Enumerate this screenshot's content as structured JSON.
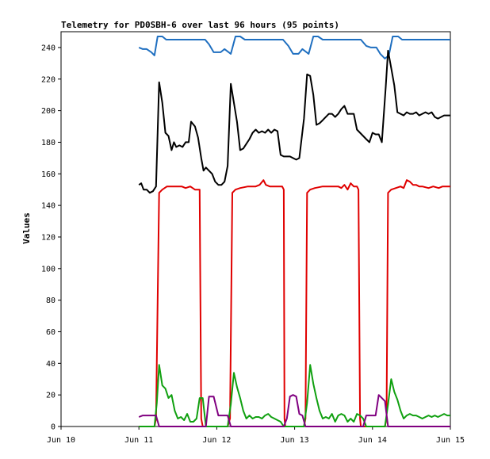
{
  "chart_data": {
    "type": "line",
    "title": "Telemetry for PD0SBH-6 over last 96 hours (95 points)",
    "xlabel": "",
    "ylabel": "Values",
    "xlim": [
      0,
      5
    ],
    "ylim": [
      0,
      250
    ],
    "x_ticks": [
      {
        "value": 0,
        "label": "Jun 10"
      },
      {
        "value": 1,
        "label": "Jun 11"
      },
      {
        "value": 2,
        "label": "Jun 12"
      },
      {
        "value": 3,
        "label": "Jun 13"
      },
      {
        "value": 4,
        "label": "Jun 14"
      },
      {
        "value": 5,
        "label": "Jun 15"
      }
    ],
    "y_ticks": [
      0,
      20,
      40,
      60,
      80,
      100,
      120,
      140,
      160,
      180,
      200,
      220,
      240
    ],
    "grid": false,
    "series": [
      {
        "color": "#1f6fc0",
        "points": [
          [
            1.0,
            240
          ],
          [
            1.05,
            239
          ],
          [
            1.1,
            239
          ],
          [
            1.16,
            237
          ],
          [
            1.2,
            235
          ],
          [
            1.24,
            247
          ],
          [
            1.3,
            247
          ],
          [
            1.35,
            245
          ],
          [
            1.5,
            245
          ],
          [
            1.7,
            245
          ],
          [
            1.85,
            245
          ],
          [
            1.9,
            242
          ],
          [
            1.96,
            237
          ],
          [
            2.05,
            237
          ],
          [
            2.1,
            239
          ],
          [
            2.18,
            236
          ],
          [
            2.24,
            247
          ],
          [
            2.3,
            247
          ],
          [
            2.36,
            245
          ],
          [
            2.6,
            245
          ],
          [
            2.85,
            245
          ],
          [
            2.92,
            241
          ],
          [
            2.98,
            236
          ],
          [
            3.05,
            236
          ],
          [
            3.1,
            239
          ],
          [
            3.18,
            236
          ],
          [
            3.24,
            247
          ],
          [
            3.3,
            247
          ],
          [
            3.36,
            245
          ],
          [
            3.6,
            245
          ],
          [
            3.85,
            245
          ],
          [
            3.92,
            241
          ],
          [
            3.98,
            240
          ],
          [
            4.05,
            240
          ],
          [
            4.1,
            236
          ],
          [
            4.16,
            233
          ],
          [
            4.21,
            235
          ],
          [
            4.26,
            247
          ],
          [
            4.33,
            247
          ],
          [
            4.38,
            245
          ],
          [
            4.6,
            245
          ],
          [
            5.0,
            245
          ]
        ]
      },
      {
        "color": "#000000",
        "points": [
          [
            1.0,
            153
          ],
          [
            1.03,
            154
          ],
          [
            1.06,
            150
          ],
          [
            1.1,
            150
          ],
          [
            1.14,
            148
          ],
          [
            1.18,
            149
          ],
          [
            1.22,
            152
          ],
          [
            1.26,
            218
          ],
          [
            1.3,
            205
          ],
          [
            1.34,
            186
          ],
          [
            1.38,
            184
          ],
          [
            1.42,
            175
          ],
          [
            1.45,
            180
          ],
          [
            1.48,
            177
          ],
          [
            1.52,
            178
          ],
          [
            1.56,
            177
          ],
          [
            1.6,
            180
          ],
          [
            1.64,
            180
          ],
          [
            1.67,
            193
          ],
          [
            1.72,
            190
          ],
          [
            1.76,
            183
          ],
          [
            1.8,
            170
          ],
          [
            1.83,
            162
          ],
          [
            1.86,
            164
          ],
          [
            1.9,
            162
          ],
          [
            1.94,
            160
          ],
          [
            1.98,
            155
          ],
          [
            2.02,
            153
          ],
          [
            2.06,
            153
          ],
          [
            2.1,
            155
          ],
          [
            2.14,
            165
          ],
          [
            2.18,
            217
          ],
          [
            2.22,
            205
          ],
          [
            2.26,
            193
          ],
          [
            2.3,
            175
          ],
          [
            2.34,
            176
          ],
          [
            2.38,
            179
          ],
          [
            2.42,
            182
          ],
          [
            2.46,
            186
          ],
          [
            2.5,
            188
          ],
          [
            2.54,
            186
          ],
          [
            2.58,
            187
          ],
          [
            2.62,
            186
          ],
          [
            2.66,
            188
          ],
          [
            2.7,
            186
          ],
          [
            2.74,
            188
          ],
          [
            2.78,
            187
          ],
          [
            2.82,
            172
          ],
          [
            2.86,
            171
          ],
          [
            2.9,
            171
          ],
          [
            2.94,
            171
          ],
          [
            2.98,
            170
          ],
          [
            3.02,
            169
          ],
          [
            3.06,
            170
          ],
          [
            3.12,
            195
          ],
          [
            3.16,
            223
          ],
          [
            3.2,
            222
          ],
          [
            3.24,
            210
          ],
          [
            3.28,
            191
          ],
          [
            3.32,
            192
          ],
          [
            3.36,
            194
          ],
          [
            3.4,
            196
          ],
          [
            3.44,
            198
          ],
          [
            3.48,
            198
          ],
          [
            3.52,
            196
          ],
          [
            3.56,
            198
          ],
          [
            3.6,
            201
          ],
          [
            3.64,
            203
          ],
          [
            3.68,
            198
          ],
          [
            3.72,
            198
          ],
          [
            3.76,
            198
          ],
          [
            3.8,
            188
          ],
          [
            3.84,
            186
          ],
          [
            3.88,
            184
          ],
          [
            3.92,
            182
          ],
          [
            3.96,
            180
          ],
          [
            4.0,
            186
          ],
          [
            4.04,
            185
          ],
          [
            4.08,
            185
          ],
          [
            4.12,
            180
          ],
          [
            4.17,
            215
          ],
          [
            4.2,
            238
          ],
          [
            4.24,
            227
          ],
          [
            4.28,
            216
          ],
          [
            4.32,
            199
          ],
          [
            4.36,
            198
          ],
          [
            4.4,
            197
          ],
          [
            4.44,
            199
          ],
          [
            4.48,
            198
          ],
          [
            4.52,
            198
          ],
          [
            4.56,
            199
          ],
          [
            4.6,
            197
          ],
          [
            4.64,
            198
          ],
          [
            4.68,
            199
          ],
          [
            4.72,
            198
          ],
          [
            4.76,
            199
          ],
          [
            4.8,
            196
          ],
          [
            4.84,
            195
          ],
          [
            4.88,
            196
          ],
          [
            4.92,
            197
          ],
          [
            5.0,
            197
          ]
        ]
      },
      {
        "color": "#e00000",
        "points": [
          [
            1.0,
            0
          ],
          [
            1.2,
            0
          ],
          [
            1.22,
            5
          ],
          [
            1.26,
            148
          ],
          [
            1.3,
            150
          ],
          [
            1.36,
            152
          ],
          [
            1.45,
            152
          ],
          [
            1.55,
            152
          ],
          [
            1.6,
            151
          ],
          [
            1.66,
            152
          ],
          [
            1.72,
            150
          ],
          [
            1.78,
            150
          ],
          [
            1.8,
            5
          ],
          [
            1.82,
            0
          ],
          [
            2.14,
            0
          ],
          [
            2.17,
            5
          ],
          [
            2.2,
            148
          ],
          [
            2.24,
            150
          ],
          [
            2.3,
            151
          ],
          [
            2.4,
            152
          ],
          [
            2.5,
            152
          ],
          [
            2.55,
            153
          ],
          [
            2.6,
            156
          ],
          [
            2.63,
            153
          ],
          [
            2.68,
            152
          ],
          [
            2.74,
            152
          ],
          [
            2.8,
            152
          ],
          [
            2.84,
            152
          ],
          [
            2.86,
            150
          ],
          [
            2.87,
            5
          ],
          [
            2.88,
            0
          ],
          [
            3.12,
            0
          ],
          [
            3.14,
            5
          ],
          [
            3.16,
            148
          ],
          [
            3.2,
            150
          ],
          [
            3.26,
            151
          ],
          [
            3.36,
            152
          ],
          [
            3.46,
            152
          ],
          [
            3.56,
            152
          ],
          [
            3.6,
            151
          ],
          [
            3.64,
            153
          ],
          [
            3.68,
            150
          ],
          [
            3.72,
            154
          ],
          [
            3.76,
            152
          ],
          [
            3.8,
            152
          ],
          [
            3.82,
            150
          ],
          [
            3.84,
            5
          ],
          [
            3.85,
            0
          ],
          [
            4.16,
            0
          ],
          [
            4.18,
            5
          ],
          [
            4.2,
            148
          ],
          [
            4.24,
            150
          ],
          [
            4.3,
            151
          ],
          [
            4.36,
            152
          ],
          [
            4.4,
            151
          ],
          [
            4.44,
            156
          ],
          [
            4.48,
            155
          ],
          [
            4.52,
            153
          ],
          [
            4.56,
            153
          ],
          [
            4.6,
            152
          ],
          [
            4.64,
            152
          ],
          [
            4.72,
            151
          ],
          [
            4.78,
            152
          ],
          [
            4.85,
            151
          ],
          [
            4.9,
            152
          ],
          [
            4.95,
            152
          ],
          [
            5.0,
            152
          ]
        ]
      },
      {
        "color": "#10a010",
        "points": [
          [
            1.0,
            0
          ],
          [
            1.2,
            0
          ],
          [
            1.23,
            15
          ],
          [
            1.26,
            39
          ],
          [
            1.3,
            26
          ],
          [
            1.34,
            24
          ],
          [
            1.38,
            18
          ],
          [
            1.42,
            20
          ],
          [
            1.46,
            10
          ],
          [
            1.5,
            5
          ],
          [
            1.54,
            6
          ],
          [
            1.58,
            4
          ],
          [
            1.62,
            8
          ],
          [
            1.66,
            3
          ],
          [
            1.7,
            3
          ],
          [
            1.74,
            5
          ],
          [
            1.78,
            18
          ],
          [
            1.82,
            18
          ],
          [
            1.86,
            0
          ],
          [
            2.14,
            0
          ],
          [
            2.18,
            14
          ],
          [
            2.22,
            34
          ],
          [
            2.26,
            25
          ],
          [
            2.3,
            18
          ],
          [
            2.34,
            10
          ],
          [
            2.38,
            5
          ],
          [
            2.42,
            7
          ],
          [
            2.46,
            5
          ],
          [
            2.5,
            6
          ],
          [
            2.54,
            6
          ],
          [
            2.58,
            5
          ],
          [
            2.62,
            7
          ],
          [
            2.66,
            8
          ],
          [
            2.7,
            6
          ],
          [
            2.74,
            5
          ],
          [
            2.78,
            4
          ],
          [
            2.82,
            3
          ],
          [
            2.86,
            0
          ],
          [
            3.12,
            0
          ],
          [
            3.16,
            15
          ],
          [
            3.2,
            39
          ],
          [
            3.24,
            27
          ],
          [
            3.28,
            18
          ],
          [
            3.32,
            10
          ],
          [
            3.36,
            5
          ],
          [
            3.4,
            6
          ],
          [
            3.44,
            5
          ],
          [
            3.48,
            8
          ],
          [
            3.52,
            3
          ],
          [
            3.56,
            7
          ],
          [
            3.6,
            8
          ],
          [
            3.64,
            7
          ],
          [
            3.68,
            3
          ],
          [
            3.72,
            5
          ],
          [
            3.76,
            3
          ],
          [
            3.8,
            8
          ],
          [
            3.84,
            7
          ],
          [
            3.88,
            5
          ],
          [
            3.92,
            0
          ],
          [
            4.16,
            0
          ],
          [
            4.2,
            14
          ],
          [
            4.24,
            30
          ],
          [
            4.28,
            22
          ],
          [
            4.32,
            17
          ],
          [
            4.36,
            10
          ],
          [
            4.4,
            5
          ],
          [
            4.44,
            7
          ],
          [
            4.48,
            8
          ],
          [
            4.52,
            7
          ],
          [
            4.56,
            7
          ],
          [
            4.6,
            6
          ],
          [
            4.64,
            5
          ],
          [
            4.68,
            6
          ],
          [
            4.72,
            7
          ],
          [
            4.76,
            6
          ],
          [
            4.8,
            7
          ],
          [
            4.84,
            6
          ],
          [
            4.88,
            7
          ],
          [
            4.92,
            8
          ],
          [
            4.96,
            7
          ],
          [
            5.0,
            7
          ]
        ]
      },
      {
        "color": "#800080",
        "points": [
          [
            1.0,
            6
          ],
          [
            1.05,
            7
          ],
          [
            1.1,
            7
          ],
          [
            1.16,
            7
          ],
          [
            1.22,
            7
          ],
          [
            1.26,
            0
          ],
          [
            1.86,
            0
          ],
          [
            1.9,
            19
          ],
          [
            1.96,
            19
          ],
          [
            2.02,
            7
          ],
          [
            2.08,
            7
          ],
          [
            2.14,
            7
          ],
          [
            2.18,
            0
          ],
          [
            2.86,
            0
          ],
          [
            2.9,
            5
          ],
          [
            2.94,
            19
          ],
          [
            2.98,
            20
          ],
          [
            3.02,
            19
          ],
          [
            3.06,
            8
          ],
          [
            3.1,
            7
          ],
          [
            3.14,
            0
          ],
          [
            3.88,
            0
          ],
          [
            3.92,
            7
          ],
          [
            3.96,
            7
          ],
          [
            4.0,
            7
          ],
          [
            4.04,
            7
          ],
          [
            4.08,
            20
          ],
          [
            4.12,
            18
          ],
          [
            4.16,
            16
          ],
          [
            4.2,
            0
          ],
          [
            4.36,
            0
          ],
          [
            5.0,
            0
          ]
        ]
      }
    ]
  }
}
